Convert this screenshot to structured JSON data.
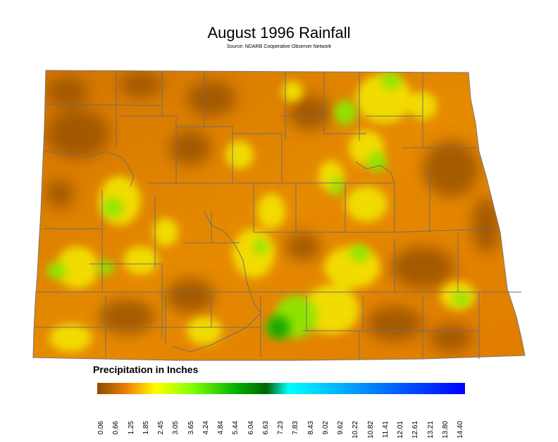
{
  "title": "August 1996 Rainfall",
  "subtitle": "Source: NDARB Cooperative Observer Network",
  "legend": {
    "title": "Precipitation in Inches",
    "ticks": [
      "0.06",
      "0.66",
      "1.25",
      "1.85",
      "2.45",
      "3.05",
      "3.65",
      "4.24",
      "4.84",
      "5.44",
      "6.04",
      "6.63",
      "7.23",
      "7.83",
      "8.43",
      "9.02",
      "9.62",
      "10.22",
      "10.82",
      "11.41",
      "12.01",
      "12.61",
      "13.21",
      "13.80",
      "14.40"
    ],
    "stops": [
      {
        "at": 0,
        "color": "#8b4a00"
      },
      {
        "at": 0.08,
        "color": "#f08000"
      },
      {
        "at": 0.16,
        "color": "#ffff00"
      },
      {
        "at": 0.26,
        "color": "#80ff00"
      },
      {
        "at": 0.38,
        "color": "#00b000"
      },
      {
        "at": 0.46,
        "color": "#006400"
      },
      {
        "at": 0.52,
        "color": "#00ffff"
      },
      {
        "at": 0.62,
        "color": "#00c8ff"
      },
      {
        "at": 0.78,
        "color": "#0070ff"
      },
      {
        "at": 1,
        "color": "#0000ff"
      }
    ]
  },
  "colors": {
    "dry": "#c86400",
    "orange": "#e88a00",
    "yellow": "#f2e400",
    "green": "#7de000",
    "dark_green": "#1aa800",
    "county_line": "#6e6e6e"
  }
}
